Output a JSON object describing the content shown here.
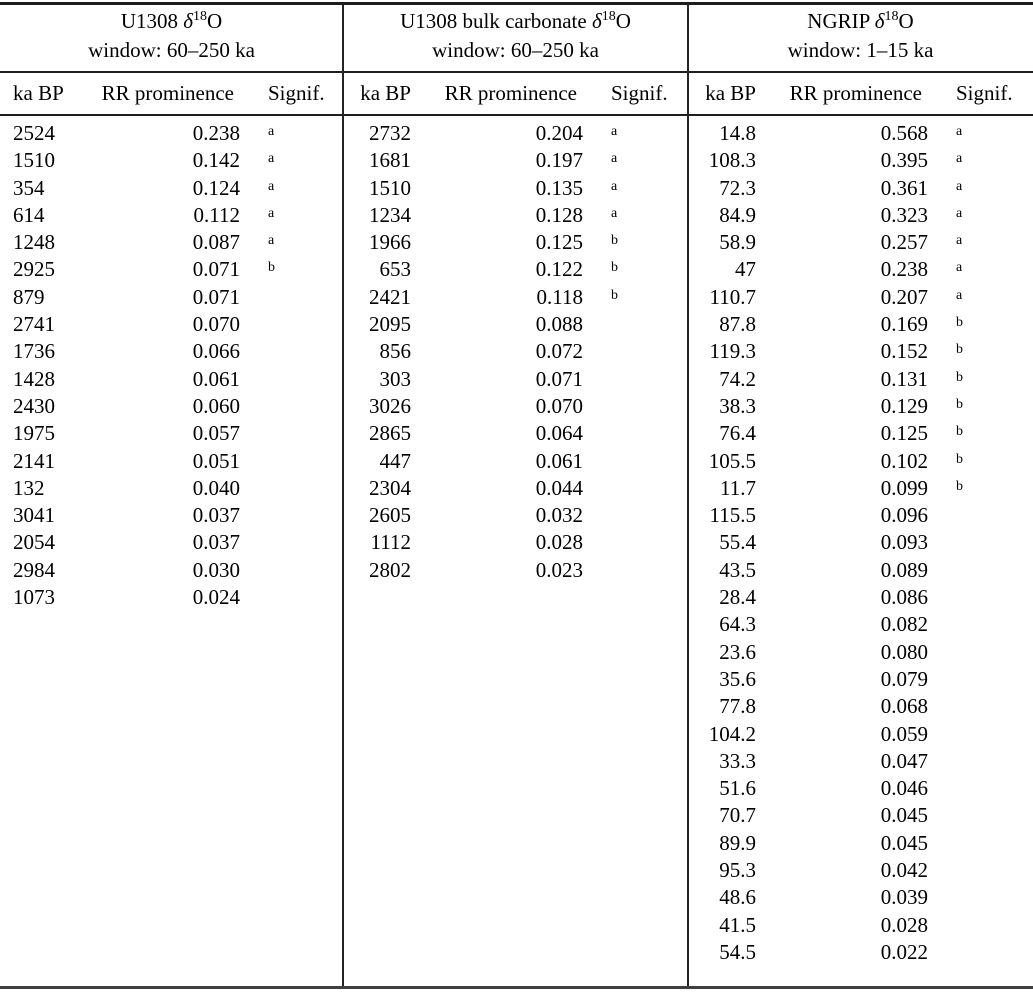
{
  "table": {
    "columns": [
      "ka BP",
      "RR prominence",
      "Signif."
    ],
    "groups": [
      {
        "title": {
          "prefix": "U1308",
          "delta": "δ",
          "sup": "18",
          "suffix": "O"
        },
        "window": "window: 60–250 ka",
        "rows": [
          {
            "ka": "2524",
            "rr": "0.238",
            "sig": "a"
          },
          {
            "ka": "1510",
            "rr": "0.142",
            "sig": "a"
          },
          {
            "ka": "354",
            "rr": "0.124",
            "sig": "a"
          },
          {
            "ka": "614",
            "rr": "0.112",
            "sig": "a"
          },
          {
            "ka": "1248",
            "rr": "0.087",
            "sig": "a"
          },
          {
            "ka": "2925",
            "rr": "0.071",
            "sig": "b"
          },
          {
            "ka": "879",
            "rr": "0.071",
            "sig": ""
          },
          {
            "ka": "2741",
            "rr": "0.070",
            "sig": ""
          },
          {
            "ka": "1736",
            "rr": "0.066",
            "sig": ""
          },
          {
            "ka": "1428",
            "rr": "0.061",
            "sig": ""
          },
          {
            "ka": "2430",
            "rr": "0.060",
            "sig": ""
          },
          {
            "ka": "1975",
            "rr": "0.057",
            "sig": ""
          },
          {
            "ka": "2141",
            "rr": "0.051",
            "sig": ""
          },
          {
            "ka": "132",
            "rr": "0.040",
            "sig": ""
          },
          {
            "ka": "3041",
            "rr": "0.037",
            "sig": ""
          },
          {
            "ka": "2054",
            "rr": "0.037",
            "sig": ""
          },
          {
            "ka": "2984",
            "rr": "0.030",
            "sig": ""
          },
          {
            "ka": "1073",
            "rr": "0.024",
            "sig": ""
          }
        ]
      },
      {
        "title": {
          "prefix": "U1308 bulk carbonate",
          "delta": "δ",
          "sup": "18",
          "suffix": "O"
        },
        "window": "window: 60–250 ka",
        "rows": [
          {
            "ka": "2732",
            "rr": "0.204",
            "sig": "a"
          },
          {
            "ka": "1681",
            "rr": "0.197",
            "sig": "a"
          },
          {
            "ka": "1510",
            "rr": "0.135",
            "sig": "a"
          },
          {
            "ka": "1234",
            "rr": "0.128",
            "sig": "a"
          },
          {
            "ka": "1966",
            "rr": "0.125",
            "sig": "b"
          },
          {
            "ka": "653",
            "rr": "0.122",
            "sig": "b"
          },
          {
            "ka": "2421",
            "rr": "0.118",
            "sig": "b"
          },
          {
            "ka": "2095",
            "rr": "0.088",
            "sig": ""
          },
          {
            "ka": "856",
            "rr": "0.072",
            "sig": ""
          },
          {
            "ka": "303",
            "rr": "0.071",
            "sig": ""
          },
          {
            "ka": "3026",
            "rr": "0.070",
            "sig": ""
          },
          {
            "ka": "2865",
            "rr": "0.064",
            "sig": ""
          },
          {
            "ka": "447",
            "rr": "0.061",
            "sig": ""
          },
          {
            "ka": "2304",
            "rr": "0.044",
            "sig": ""
          },
          {
            "ka": "2605",
            "rr": "0.032",
            "sig": ""
          },
          {
            "ka": "1112",
            "rr": "0.028",
            "sig": ""
          },
          {
            "ka": "2802",
            "rr": "0.023",
            "sig": ""
          }
        ]
      },
      {
        "title": {
          "prefix": "NGRIP",
          "delta": "δ",
          "sup": "18",
          "suffix": "O"
        },
        "window": "window: 1–15 ka",
        "rows": [
          {
            "ka": "14.8",
            "rr": "0.568",
            "sig": "a"
          },
          {
            "ka": "108.3",
            "rr": "0.395",
            "sig": "a"
          },
          {
            "ka": "72.3",
            "rr": "0.361",
            "sig": "a"
          },
          {
            "ka": "84.9",
            "rr": "0.323",
            "sig": "a"
          },
          {
            "ka": "58.9",
            "rr": "0.257",
            "sig": "a"
          },
          {
            "ka": "47",
            "rr": "0.238",
            "sig": "a"
          },
          {
            "ka": "110.7",
            "rr": "0.207",
            "sig": "a"
          },
          {
            "ka": "87.8",
            "rr": "0.169",
            "sig": "b"
          },
          {
            "ka": "119.3",
            "rr": "0.152",
            "sig": "b"
          },
          {
            "ka": "74.2",
            "rr": "0.131",
            "sig": "b"
          },
          {
            "ka": "38.3",
            "rr": "0.129",
            "sig": "b"
          },
          {
            "ka": "76.4",
            "rr": "0.125",
            "sig": "b"
          },
          {
            "ka": "105.5",
            "rr": "0.102",
            "sig": "b"
          },
          {
            "ka": "11.7",
            "rr": "0.099",
            "sig": "b"
          },
          {
            "ka": "115.5",
            "rr": "0.096",
            "sig": ""
          },
          {
            "ka": "55.4",
            "rr": "0.093",
            "sig": ""
          },
          {
            "ka": "43.5",
            "rr": "0.089",
            "sig": ""
          },
          {
            "ka": "28.4",
            "rr": "0.086",
            "sig": ""
          },
          {
            "ka": "64.3",
            "rr": "0.082",
            "sig": ""
          },
          {
            "ka": "23.6",
            "rr": "0.080",
            "sig": ""
          },
          {
            "ka": "35.6",
            "rr": "0.079",
            "sig": ""
          },
          {
            "ka": "77.8",
            "rr": "0.068",
            "sig": ""
          },
          {
            "ka": "104.2",
            "rr": "0.059",
            "sig": ""
          },
          {
            "ka": "33.3",
            "rr": "0.047",
            "sig": ""
          },
          {
            "ka": "51.6",
            "rr": "0.046",
            "sig": ""
          },
          {
            "ka": "70.7",
            "rr": "0.045",
            "sig": ""
          },
          {
            "ka": "89.9",
            "rr": "0.045",
            "sig": ""
          },
          {
            "ka": "95.3",
            "rr": "0.042",
            "sig": ""
          },
          {
            "ka": "48.6",
            "rr": "0.039",
            "sig": ""
          },
          {
            "ka": "41.5",
            "rr": "0.028",
            "sig": ""
          },
          {
            "ka": "54.5",
            "rr": "0.022",
            "sig": ""
          }
        ]
      }
    ]
  }
}
